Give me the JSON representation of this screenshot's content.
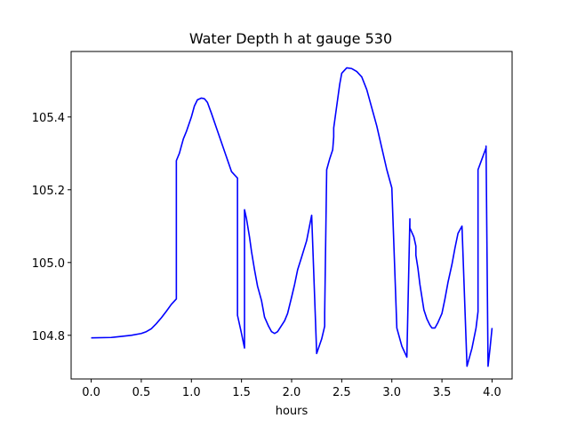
{
  "chart_data": {
    "type": "line",
    "title": "Water Depth h at gauge 530",
    "xlabel": "hours",
    "ylabel": "",
    "xlim": [
      -0.2,
      4.2
    ],
    "ylim": [
      104.68,
      105.58
    ],
    "xticks": [
      0.0,
      0.5,
      1.0,
      1.5,
      2.0,
      2.5,
      3.0,
      3.5,
      4.0
    ],
    "xtick_labels": [
      "0.0",
      "0.5",
      "1.0",
      "1.5",
      "2.0",
      "2.5",
      "3.0",
      "3.5",
      "4.0"
    ],
    "yticks": [
      104.8,
      105.0,
      105.2,
      105.4
    ],
    "ytick_labels": [
      "104.8",
      "105.0",
      "105.2",
      "105.4"
    ],
    "grid": false,
    "series": [
      {
        "color": "#0000ff",
        "x": [
          0.0,
          0.2,
          0.3,
          0.4,
          0.5,
          0.55,
          0.6,
          0.65,
          0.7,
          0.75,
          0.8,
          0.85,
          0.85,
          0.88,
          0.9,
          0.92,
          0.95,
          1.0,
          1.03,
          1.06,
          1.1,
          1.13,
          1.16,
          1.2,
          1.25,
          1.3,
          1.35,
          1.4,
          1.45,
          1.46,
          1.46,
          1.5,
          1.53,
          1.53,
          1.55,
          1.58,
          1.6,
          1.63,
          1.66,
          1.7,
          1.73,
          1.77,
          1.8,
          1.83,
          1.86,
          1.9,
          1.93,
          1.96,
          2.0,
          2.03,
          2.06,
          2.1,
          2.15,
          2.2,
          2.25,
          2.3,
          2.33,
          2.33,
          2.35,
          2.38,
          2.41,
          2.42,
          2.42,
          2.44,
          2.46,
          2.48,
          2.5,
          2.55,
          2.6,
          2.65,
          2.7,
          2.75,
          2.8,
          2.85,
          2.9,
          2.95,
          3.0,
          3.05,
          3.1,
          3.15,
          3.18,
          3.18,
          3.22,
          3.24,
          3.24,
          3.26,
          3.28,
          3.3,
          3.32,
          3.35,
          3.38,
          3.4,
          3.43,
          3.46,
          3.5,
          3.53,
          3.56,
          3.6,
          3.63,
          3.66,
          3.7,
          3.75,
          3.8,
          3.84,
          3.86,
          3.86,
          3.9,
          3.94,
          3.94,
          3.96,
          3.98,
          4.0
        ],
        "y": [
          104.793,
          104.794,
          104.797,
          104.8,
          104.805,
          104.81,
          104.818,
          104.832,
          104.848,
          104.866,
          104.885,
          104.9,
          105.28,
          105.3,
          105.32,
          105.34,
          105.36,
          105.4,
          105.43,
          105.447,
          105.452,
          105.45,
          105.44,
          105.41,
          105.37,
          105.33,
          105.29,
          105.25,
          105.235,
          105.232,
          104.855,
          104.805,
          104.765,
          105.145,
          105.12,
          105.07,
          105.03,
          104.98,
          104.935,
          104.895,
          104.85,
          104.825,
          104.81,
          104.805,
          104.81,
          104.827,
          104.84,
          104.86,
          104.905,
          104.94,
          104.98,
          105.015,
          105.06,
          105.13,
          104.75,
          104.79,
          104.825,
          104.862,
          105.255,
          105.285,
          105.31,
          105.345,
          105.37,
          105.41,
          105.45,
          105.49,
          105.52,
          105.535,
          105.533,
          105.525,
          105.51,
          105.475,
          105.425,
          105.375,
          105.315,
          105.255,
          105.205,
          104.82,
          104.77,
          104.74,
          105.12,
          105.095,
          105.07,
          105.045,
          105.02,
          104.985,
          104.94,
          104.905,
          104.87,
          104.845,
          104.828,
          104.82,
          104.82,
          104.835,
          104.86,
          104.9,
          104.945,
          104.995,
          105.04,
          105.08,
          105.1,
          104.715,
          104.765,
          104.82,
          104.865,
          105.255,
          105.285,
          105.315,
          105.32,
          104.715,
          104.765,
          104.82
        ]
      }
    ]
  }
}
